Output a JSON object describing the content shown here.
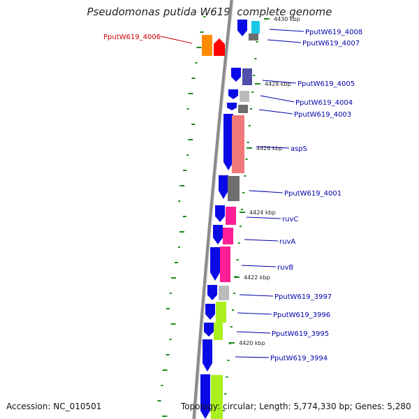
{
  "title": "Pseudomonas putida W619, complete genome",
  "accession": "Accession: NC_010501",
  "topology": "Topology: circular; Length: 5,774,330 bp; Genes: 5,280",
  "colors": {
    "blue_cds": "#0a0ae6",
    "highlight_label": "#cc0000",
    "normal_label": "#0000aa",
    "backbone": "#8a8a8a",
    "gc_tick": "#1a8a1a"
  },
  "kbp_markers": [
    "4430 kbp",
    "4428 kbp",
    "4426 kbp",
    "4424 kbp",
    "4422 kbp",
    "4420 kbp"
  ],
  "genes": [
    {
      "label": "PputW619_4008",
      "color": "#19c8e6"
    },
    {
      "label": "PputW619_4007",
      "color": "#6e6e6e"
    },
    {
      "label": "PputW619_4006",
      "color": "#ff8c00",
      "highlight": true
    },
    {
      "label": "PputW619_4005",
      "color": "#5050aa"
    },
    {
      "label": "PputW619_4004",
      "color": "#bbbbbb"
    },
    {
      "label": "PputW619_4003",
      "color": "#6e6e6e"
    },
    {
      "label": "aspS",
      "color": "#f07878"
    },
    {
      "label": "PputW619_4001",
      "color": "#6e6e6e"
    },
    {
      "label": "ruvC",
      "color": "#ff1e96"
    },
    {
      "label": "ruvA",
      "color": "#ff1e96"
    },
    {
      "label": "ruvB",
      "color": "#ff1e96"
    },
    {
      "label": "PputW619_3997",
      "color": "#bbbbbb"
    },
    {
      "label": "PputW619_3996",
      "color": "#aaf01e"
    },
    {
      "label": "PputW619_3995",
      "color": "#aaf01e"
    },
    {
      "label": "PputW619_3994",
      "color": "#aaf01e"
    }
  ]
}
